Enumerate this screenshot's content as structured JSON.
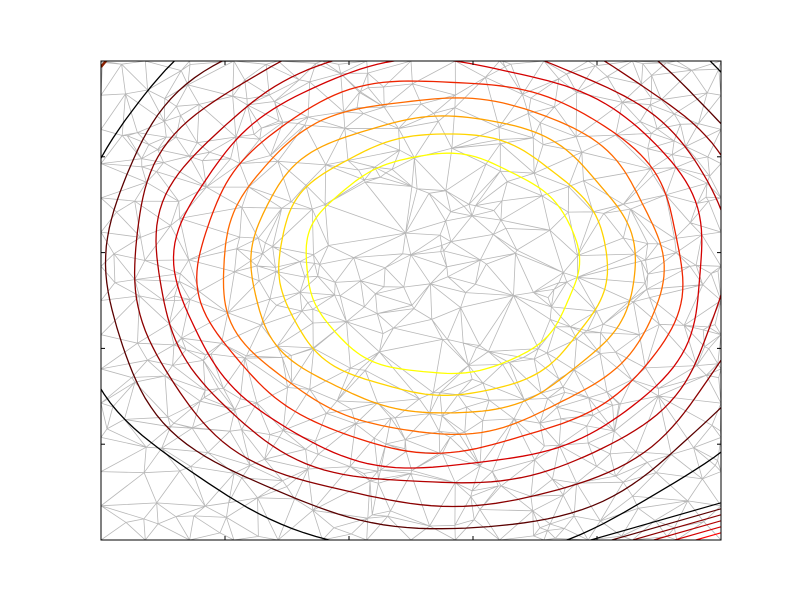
{
  "chart_data": {
    "type": "contour",
    "title": "",
    "xlabel": "",
    "ylabel": "",
    "xlim": [
      -1,
      1
    ],
    "ylim": [
      -1,
      1
    ],
    "grid": false,
    "legend": "none",
    "background_mesh": {
      "kind": "triangulation",
      "color": "#a0a0a0",
      "point_count": 520,
      "seed": 42
    },
    "center": [
      0.1,
      0.25
    ],
    "contours": [
      {
        "level": 1,
        "rx": 0.44,
        "ry": 0.74,
        "color": "#ffff00"
      },
      {
        "level": 2,
        "rx": 0.53,
        "ry": 0.88,
        "color": "#ffd500"
      },
      {
        "level": 3,
        "rx": 0.62,
        "ry": 1.0,
        "color": "#ffa400"
      },
      {
        "level": 4,
        "rx": 0.71,
        "ry": 1.13,
        "color": "#ff6a00"
      },
      {
        "level": 5,
        "rx": 0.78,
        "ry": 1.25,
        "color": "#ee2400"
      },
      {
        "level": 6,
        "rx": 0.85,
        "ry": 1.37,
        "color": "#d40000"
      },
      {
        "level": 7,
        "rx": 0.92,
        "ry": 1.49,
        "color": "#b40000"
      },
      {
        "level": 8,
        "rx": 1.0,
        "ry": 1.63,
        "color": "#8a0000"
      },
      {
        "level": 9,
        "rx": 1.09,
        "ry": 1.78,
        "color": "#5a0000"
      },
      {
        "level": 10,
        "rx": 1.19,
        "ry": 1.95,
        "color": "#000000"
      }
    ],
    "corner_artifacts": [
      {
        "corner": "bottom-right",
        "colors": [
          "#ff0000",
          "#d40000",
          "#b40000",
          "#8a0000",
          "#5a0000",
          "#000000"
        ]
      },
      {
        "corner": "top-left",
        "colors": [
          "#8a2000"
        ]
      }
    ]
  }
}
